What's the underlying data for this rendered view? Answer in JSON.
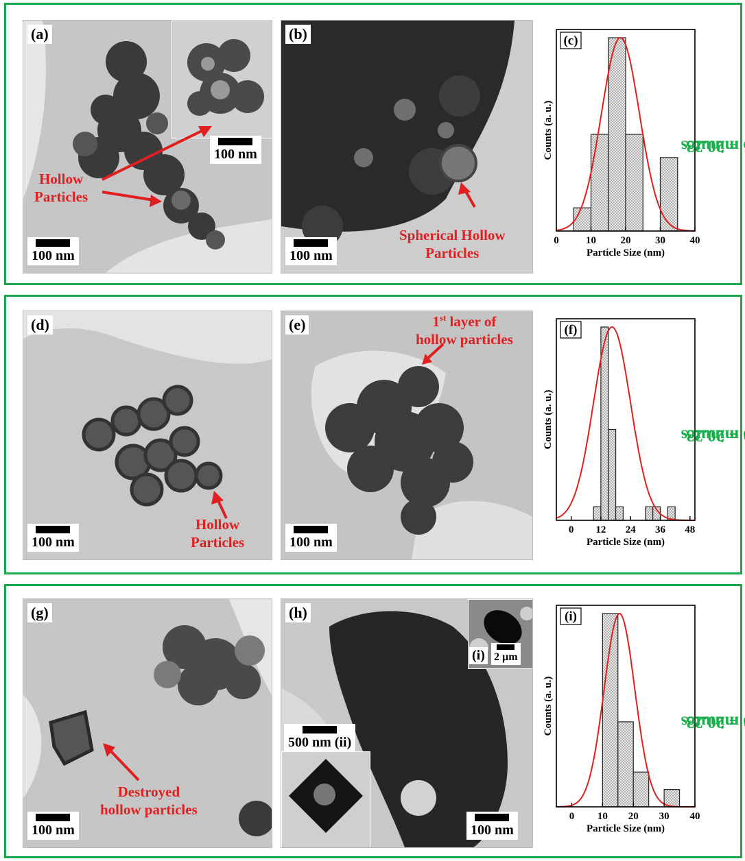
{
  "rows": [
    {
      "side": {
        "line1": "ω = 20.23",
        "line2": "15 minutes"
      },
      "panels": [
        {
          "label": "(a)",
          "scale": "100 nm",
          "inset_scale": "100 nm",
          "annotation": [
            "Hollow",
            "Particles"
          ]
        },
        {
          "label": "(b)",
          "scale": "100 nm",
          "annotation": [
            "Spherical Hollow",
            "Particles"
          ]
        }
      ]
    },
    {
      "side": {
        "line1": "ω = 20.23",
        "line2": "30 minutes"
      },
      "panels": [
        {
          "label": "(d)",
          "scale": "100 nm",
          "annotation": [
            "Hollow",
            "Particles"
          ]
        },
        {
          "label": "(e)",
          "scale": "100 nm",
          "annotation_sup": "st",
          "annotation_pre": "1",
          "annotation_rest": " layer of",
          "annotation_line2": "hollow particles"
        }
      ]
    },
    {
      "side": {
        "line1": "ω = 20.23",
        "line2": "60 minutes"
      },
      "panels": [
        {
          "label": "(g)",
          "scale": "100 nm",
          "annotation": [
            "Destroyed",
            "hollow particles"
          ]
        },
        {
          "label": "(h)",
          "scale": "100 nm",
          "inset_i_label": "(i)",
          "inset_i_scale": "2 µm",
          "inset_ii_label": "(ii)",
          "inset_ii_scale": "500 nm"
        }
      ]
    }
  ],
  "chart_data": [
    {
      "type": "bar",
      "panel_label": "(c)",
      "xlabel": "Particle Size (nm)",
      "ylabel": "Counts (a. u.)",
      "xlim": [
        0,
        40
      ],
      "xticks": [
        "0",
        "10",
        "20",
        "30",
        "40"
      ],
      "bins": [
        [
          5,
          10
        ],
        [
          10,
          15
        ],
        [
          15,
          20
        ],
        [
          20,
          25
        ],
        [
          25,
          30
        ],
        [
          30,
          35
        ]
      ],
      "values": [
        0.12,
        0.5,
        1.0,
        0.5,
        0.0,
        0.38
      ],
      "fit": {
        "type": "gaussian",
        "mean": 18.5,
        "sigma": 5.5,
        "color": "#e02020"
      }
    },
    {
      "type": "bar",
      "panel_label": "(f)",
      "xlabel": "Particle Size (nm)",
      "ylabel": "Counts (a. u.)",
      "xlim": [
        -6,
        50
      ],
      "xticks": [
        "0",
        "12",
        "24",
        "36",
        "48"
      ],
      "bins": [
        [
          6,
          9
        ],
        [
          9,
          12
        ],
        [
          12,
          15
        ],
        [
          15,
          18
        ],
        [
          18,
          21
        ],
        [
          21,
          24
        ],
        [
          24,
          27
        ],
        [
          27,
          30
        ],
        [
          30,
          33
        ],
        [
          33,
          36
        ],
        [
          36,
          39
        ],
        [
          39,
          42
        ],
        [
          42,
          45
        ]
      ],
      "values": [
        0.0,
        0.07,
        1.0,
        0.47,
        0.07,
        0.0,
        0.0,
        0.0,
        0.07,
        0.07,
        0.0,
        0.07,
        0.0
      ],
      "fit": {
        "type": "gaussian",
        "mean": 16.5,
        "sigma": 7.5,
        "color": "#e02020"
      }
    },
    {
      "type": "bar",
      "panel_label": "(i)",
      "xlabel": "Particle Size (nm)",
      "ylabel": "Counts (a. u.)",
      "xlim": [
        -5,
        40
      ],
      "xticks": [
        "0",
        "10",
        "20",
        "30",
        "40"
      ],
      "bins": [
        [
          10,
          15
        ],
        [
          15,
          20
        ],
        [
          20,
          25
        ],
        [
          25,
          30
        ],
        [
          30,
          35
        ]
      ],
      "values": [
        1.0,
        0.44,
        0.18,
        0.0,
        0.09
      ],
      "fit": {
        "type": "gaussian",
        "mean": 15.5,
        "sigma": 5.0,
        "color": "#e02020"
      }
    }
  ]
}
